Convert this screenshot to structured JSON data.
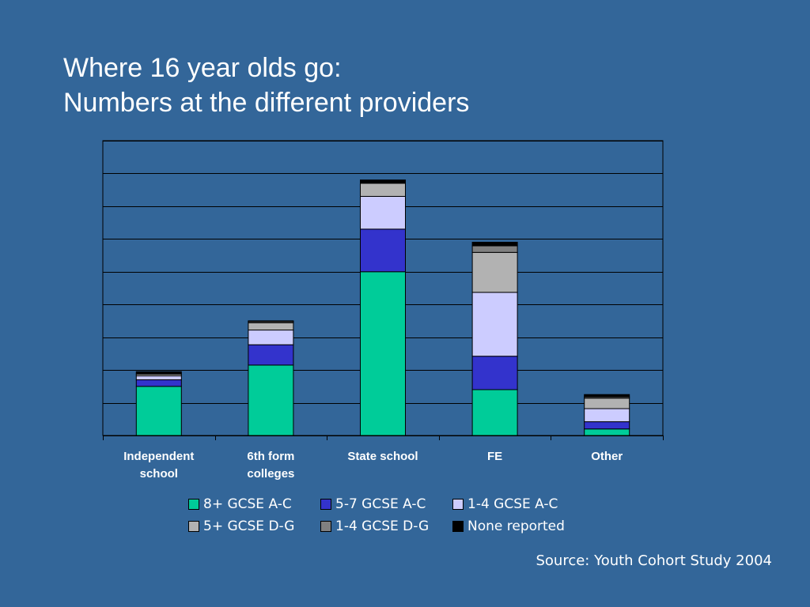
{
  "slide": {
    "title_line1": "Where 16 year olds go:",
    "title_line2": "Numbers at the different providers",
    "source": "Source: Youth Cohort Study 2004"
  },
  "colors": {
    "background": "#336699",
    "plot_border": "#000000",
    "gridline": "#000000"
  },
  "chart_data": {
    "type": "bar",
    "stacked": true,
    "categories": [
      "Independent school",
      "6th form colleges",
      "State school",
      "FE",
      "Other"
    ],
    "category_lines": [
      [
        "Independent",
        "school"
      ],
      [
        "6th form",
        "colleges"
      ],
      [
        "State school"
      ],
      [
        "FE"
      ],
      [
        "Other"
      ]
    ],
    "series": [
      {
        "name": "8+ GCSE A-C",
        "color": "#00CC99",
        "values": [
          1.5,
          2.15,
          5.0,
          1.4,
          0.2
        ]
      },
      {
        "name": "5-7 GCSE A-C",
        "color": "#3333CC",
        "values": [
          0.2,
          0.62,
          1.3,
          1.02,
          0.22
        ]
      },
      {
        "name": "1-4 GCSE A-C",
        "color": "#CCCCFF",
        "values": [
          0.12,
          0.45,
          1.0,
          1.95,
          0.4
        ]
      },
      {
        "name": "5+ GCSE D-G",
        "color": "#B2B2B2",
        "values": [
          0.05,
          0.22,
          0.4,
          1.22,
          0.32
        ]
      },
      {
        "name": "1-4 GCSE D-G",
        "color": "#808080",
        "values": [
          0.03,
          0.04,
          0.0,
          0.2,
          0.04
        ]
      },
      {
        "name": "None reported",
        "color": "#000000",
        "values": [
          0.05,
          0.02,
          0.1,
          0.11,
          0.07
        ]
      }
    ],
    "ylim": [
      0,
      9
    ],
    "y_gridlines": [
      1,
      2,
      3,
      4,
      5,
      6,
      7,
      8,
      9
    ],
    "y_tick_labels_shown": false,
    "grid": true,
    "legend_position": "bottom",
    "title": "",
    "xlabel": "",
    "ylabel": ""
  }
}
